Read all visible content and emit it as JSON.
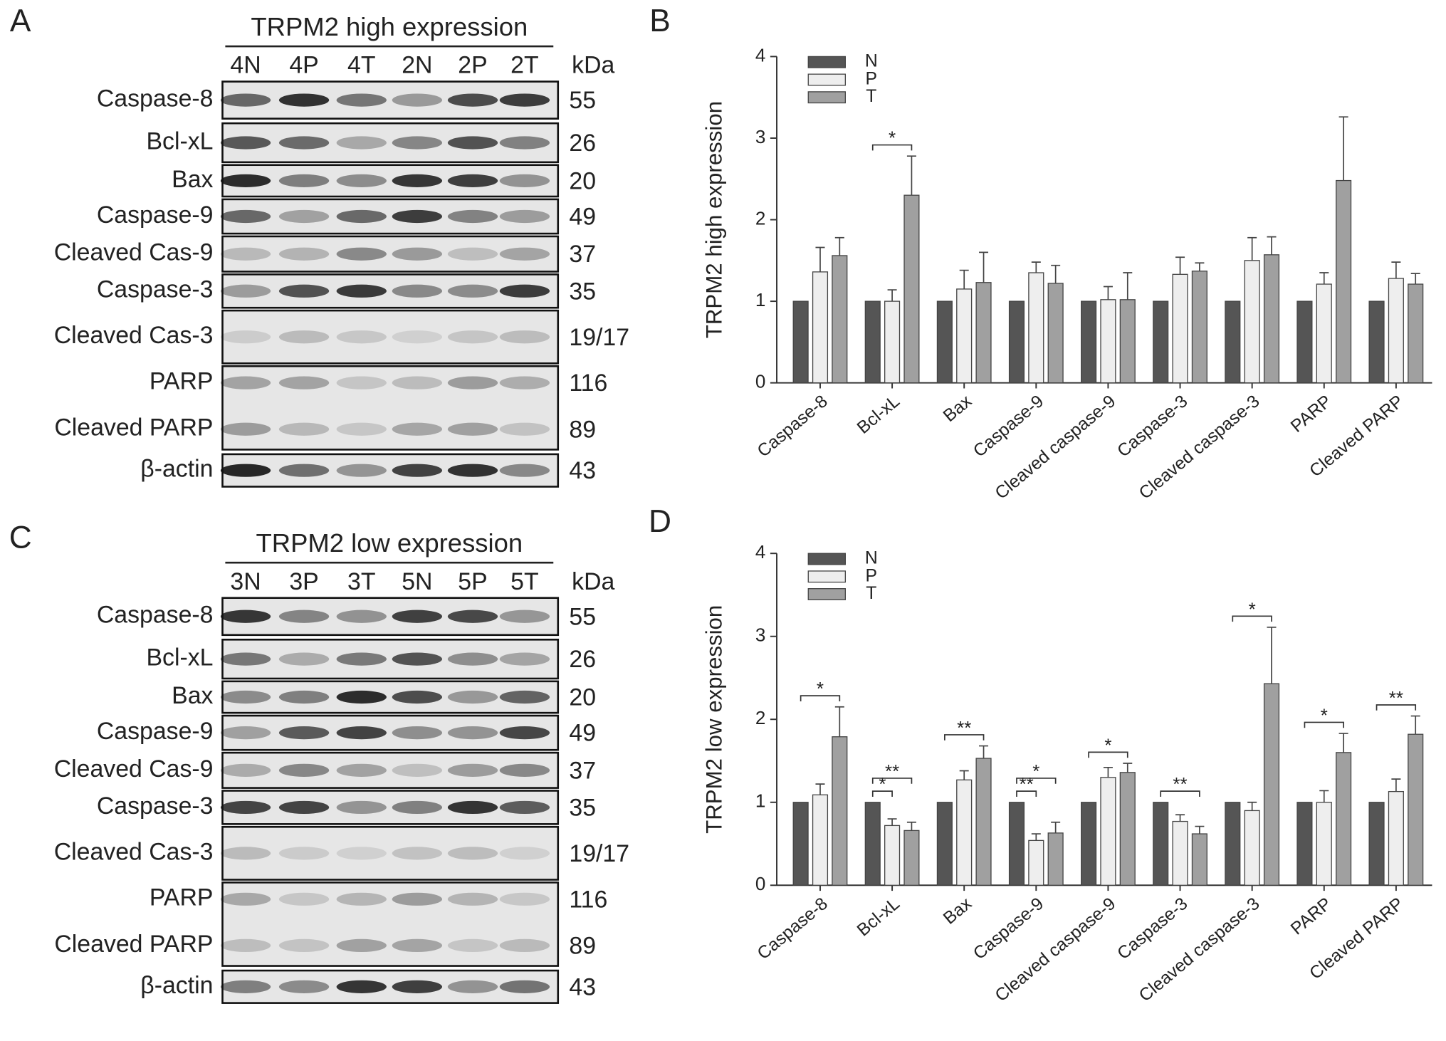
{
  "blots": [
    {
      "panel": "A",
      "title": "TRPM2 high expression",
      "lanes": [
        "4N",
        "4P",
        "4T",
        "2N",
        "2P",
        "2T"
      ],
      "unit": "kDa",
      "blocks": [
        [
          {
            "protein": "Caspase-8",
            "kda": "55"
          }
        ],
        [
          {
            "protein": "Bcl-xL",
            "kda": "26"
          }
        ],
        [
          {
            "protein": "Bax",
            "kda": "20"
          }
        ],
        [
          {
            "protein": "Caspase-9",
            "kda": "49"
          }
        ],
        [
          {
            "protein": "Cleaved Cas-9",
            "kda": "37"
          }
        ],
        [
          {
            "protein": "Caspase-3",
            "kda": "35"
          }
        ],
        [
          {
            "protein": "Cleaved Cas-3",
            "kda": "19/17"
          }
        ],
        [
          {
            "protein": "PARP",
            "kda": "116"
          },
          {
            "protein": "Cleaved PARP",
            "kda": "89"
          }
        ],
        [
          {
            "protein": "β-actin",
            "kda": "43"
          }
        ]
      ]
    },
    {
      "panel": "C",
      "title": "TRPM2 low expression",
      "lanes": [
        "3N",
        "3P",
        "3T",
        "5N",
        "5P",
        "5T"
      ],
      "unit": "kDa",
      "blocks": [
        [
          {
            "protein": "Caspase-8",
            "kda": "55"
          }
        ],
        [
          {
            "protein": "Bcl-xL",
            "kda": "26"
          }
        ],
        [
          {
            "protein": "Bax",
            "kda": "20"
          }
        ],
        [
          {
            "protein": "Caspase-9",
            "kda": "49"
          }
        ],
        [
          {
            "protein": "Cleaved Cas-9",
            "kda": "37"
          }
        ],
        [
          {
            "protein": "Caspase-3",
            "kda": "35"
          }
        ],
        [
          {
            "protein": "Cleaved Cas-3",
            "kda": "19/17"
          }
        ],
        [
          {
            "protein": "PARP",
            "kda": "116"
          },
          {
            "protein": "Cleaved PARP",
            "kda": "89"
          }
        ],
        [
          {
            "protein": "β-actin",
            "kda": "43"
          }
        ]
      ]
    }
  ],
  "chart_data": [
    {
      "type": "bar",
      "panel": "B",
      "y_label": "TRPM2 high expression",
      "ylim": [
        0,
        4
      ],
      "yticks": [
        0,
        1,
        2,
        3,
        4
      ],
      "legend": "top-left",
      "categories": [
        "Caspase-8",
        "Bcl-xL",
        "Bax",
        "Caspase-9",
        "Cleaved caspase-9",
        "Caspase-3",
        "Cleaved caspase-3",
        "PARP",
        "Cleaved PARP"
      ],
      "series": [
        {
          "name": "N",
          "color": "#555555",
          "values": [
            1,
            1,
            1,
            1,
            1,
            1,
            1,
            1,
            1
          ]
        },
        {
          "name": "P",
          "color": "#eeeeee",
          "values": [
            1.36,
            1.0,
            1.15,
            1.35,
            1.02,
            1.33,
            1.5,
            1.21,
            1.28
          ],
          "errors": [
            0.3,
            0.14,
            0.23,
            0.13,
            0.16,
            0.21,
            0.28,
            0.14,
            0.2
          ]
        },
        {
          "name": "T",
          "color": "#a0a0a0",
          "values": [
            1.56,
            2.3,
            1.23,
            1.22,
            1.02,
            1.37,
            1.57,
            2.48,
            1.21
          ],
          "errors": [
            0.22,
            0.48,
            0.37,
            0.22,
            0.33,
            0.1,
            0.22,
            0.78,
            0.13
          ]
        }
      ],
      "annotations": [
        {
          "text": "*",
          "category": 1,
          "pair": [
            0,
            2
          ]
        }
      ]
    },
    {
      "type": "bar",
      "panel": "D",
      "y_label": "TRPM2 low expression",
      "ylim": [
        0,
        4
      ],
      "yticks": [
        0,
        1,
        2,
        3,
        4
      ],
      "legend": "top-left",
      "categories": [
        "Caspase-8",
        "Bcl-xL",
        "Bax",
        "Caspase-9",
        "Cleaved caspase-9",
        "Caspase-3",
        "Cleaved caspase-3",
        "PARP",
        "Cleaved PARP"
      ],
      "series": [
        {
          "name": "N",
          "color": "#555555",
          "values": [
            1,
            1,
            1,
            1,
            1,
            1,
            1,
            1,
            1
          ]
        },
        {
          "name": "P",
          "color": "#eeeeee",
          "values": [
            1.09,
            0.72,
            1.27,
            0.54,
            1.3,
            0.77,
            0.9,
            1.0,
            1.13
          ],
          "errors": [
            0.13,
            0.08,
            0.11,
            0.08,
            0.12,
            0.08,
            0.1,
            0.14,
            0.15
          ]
        },
        {
          "name": "T",
          "color": "#a0a0a0",
          "values": [
            1.79,
            0.66,
            1.53,
            0.63,
            1.36,
            0.62,
            2.43,
            1.6,
            1.82
          ],
          "errors": [
            0.36,
            0.1,
            0.15,
            0.13,
            0.11,
            0.09,
            0.68,
            0.23,
            0.22
          ]
        }
      ],
      "annotations": [
        {
          "text": "*",
          "category": 0,
          "pair": [
            0,
            2
          ]
        },
        {
          "text": "*",
          "category": 1,
          "pair": [
            0,
            1
          ]
        },
        {
          "text": "**",
          "category": 1,
          "pair": [
            0,
            2
          ]
        },
        {
          "text": "**",
          "category": 2,
          "pair": [
            0,
            2
          ]
        },
        {
          "text": "**",
          "category": 3,
          "pair": [
            0,
            1
          ]
        },
        {
          "text": "*",
          "category": 3,
          "pair": [
            0,
            2
          ]
        },
        {
          "text": "*",
          "category": 4,
          "pair": [
            0,
            2
          ]
        },
        {
          "text": "**",
          "category": 5,
          "pair": [
            0,
            2
          ]
        },
        {
          "text": "*",
          "category": 6,
          "pair": [
            0,
            2
          ]
        },
        {
          "text": "*",
          "category": 7,
          "pair": [
            0,
            2
          ]
        },
        {
          "text": "**",
          "category": 8,
          "pair": [
            0,
            2
          ]
        }
      ]
    }
  ]
}
